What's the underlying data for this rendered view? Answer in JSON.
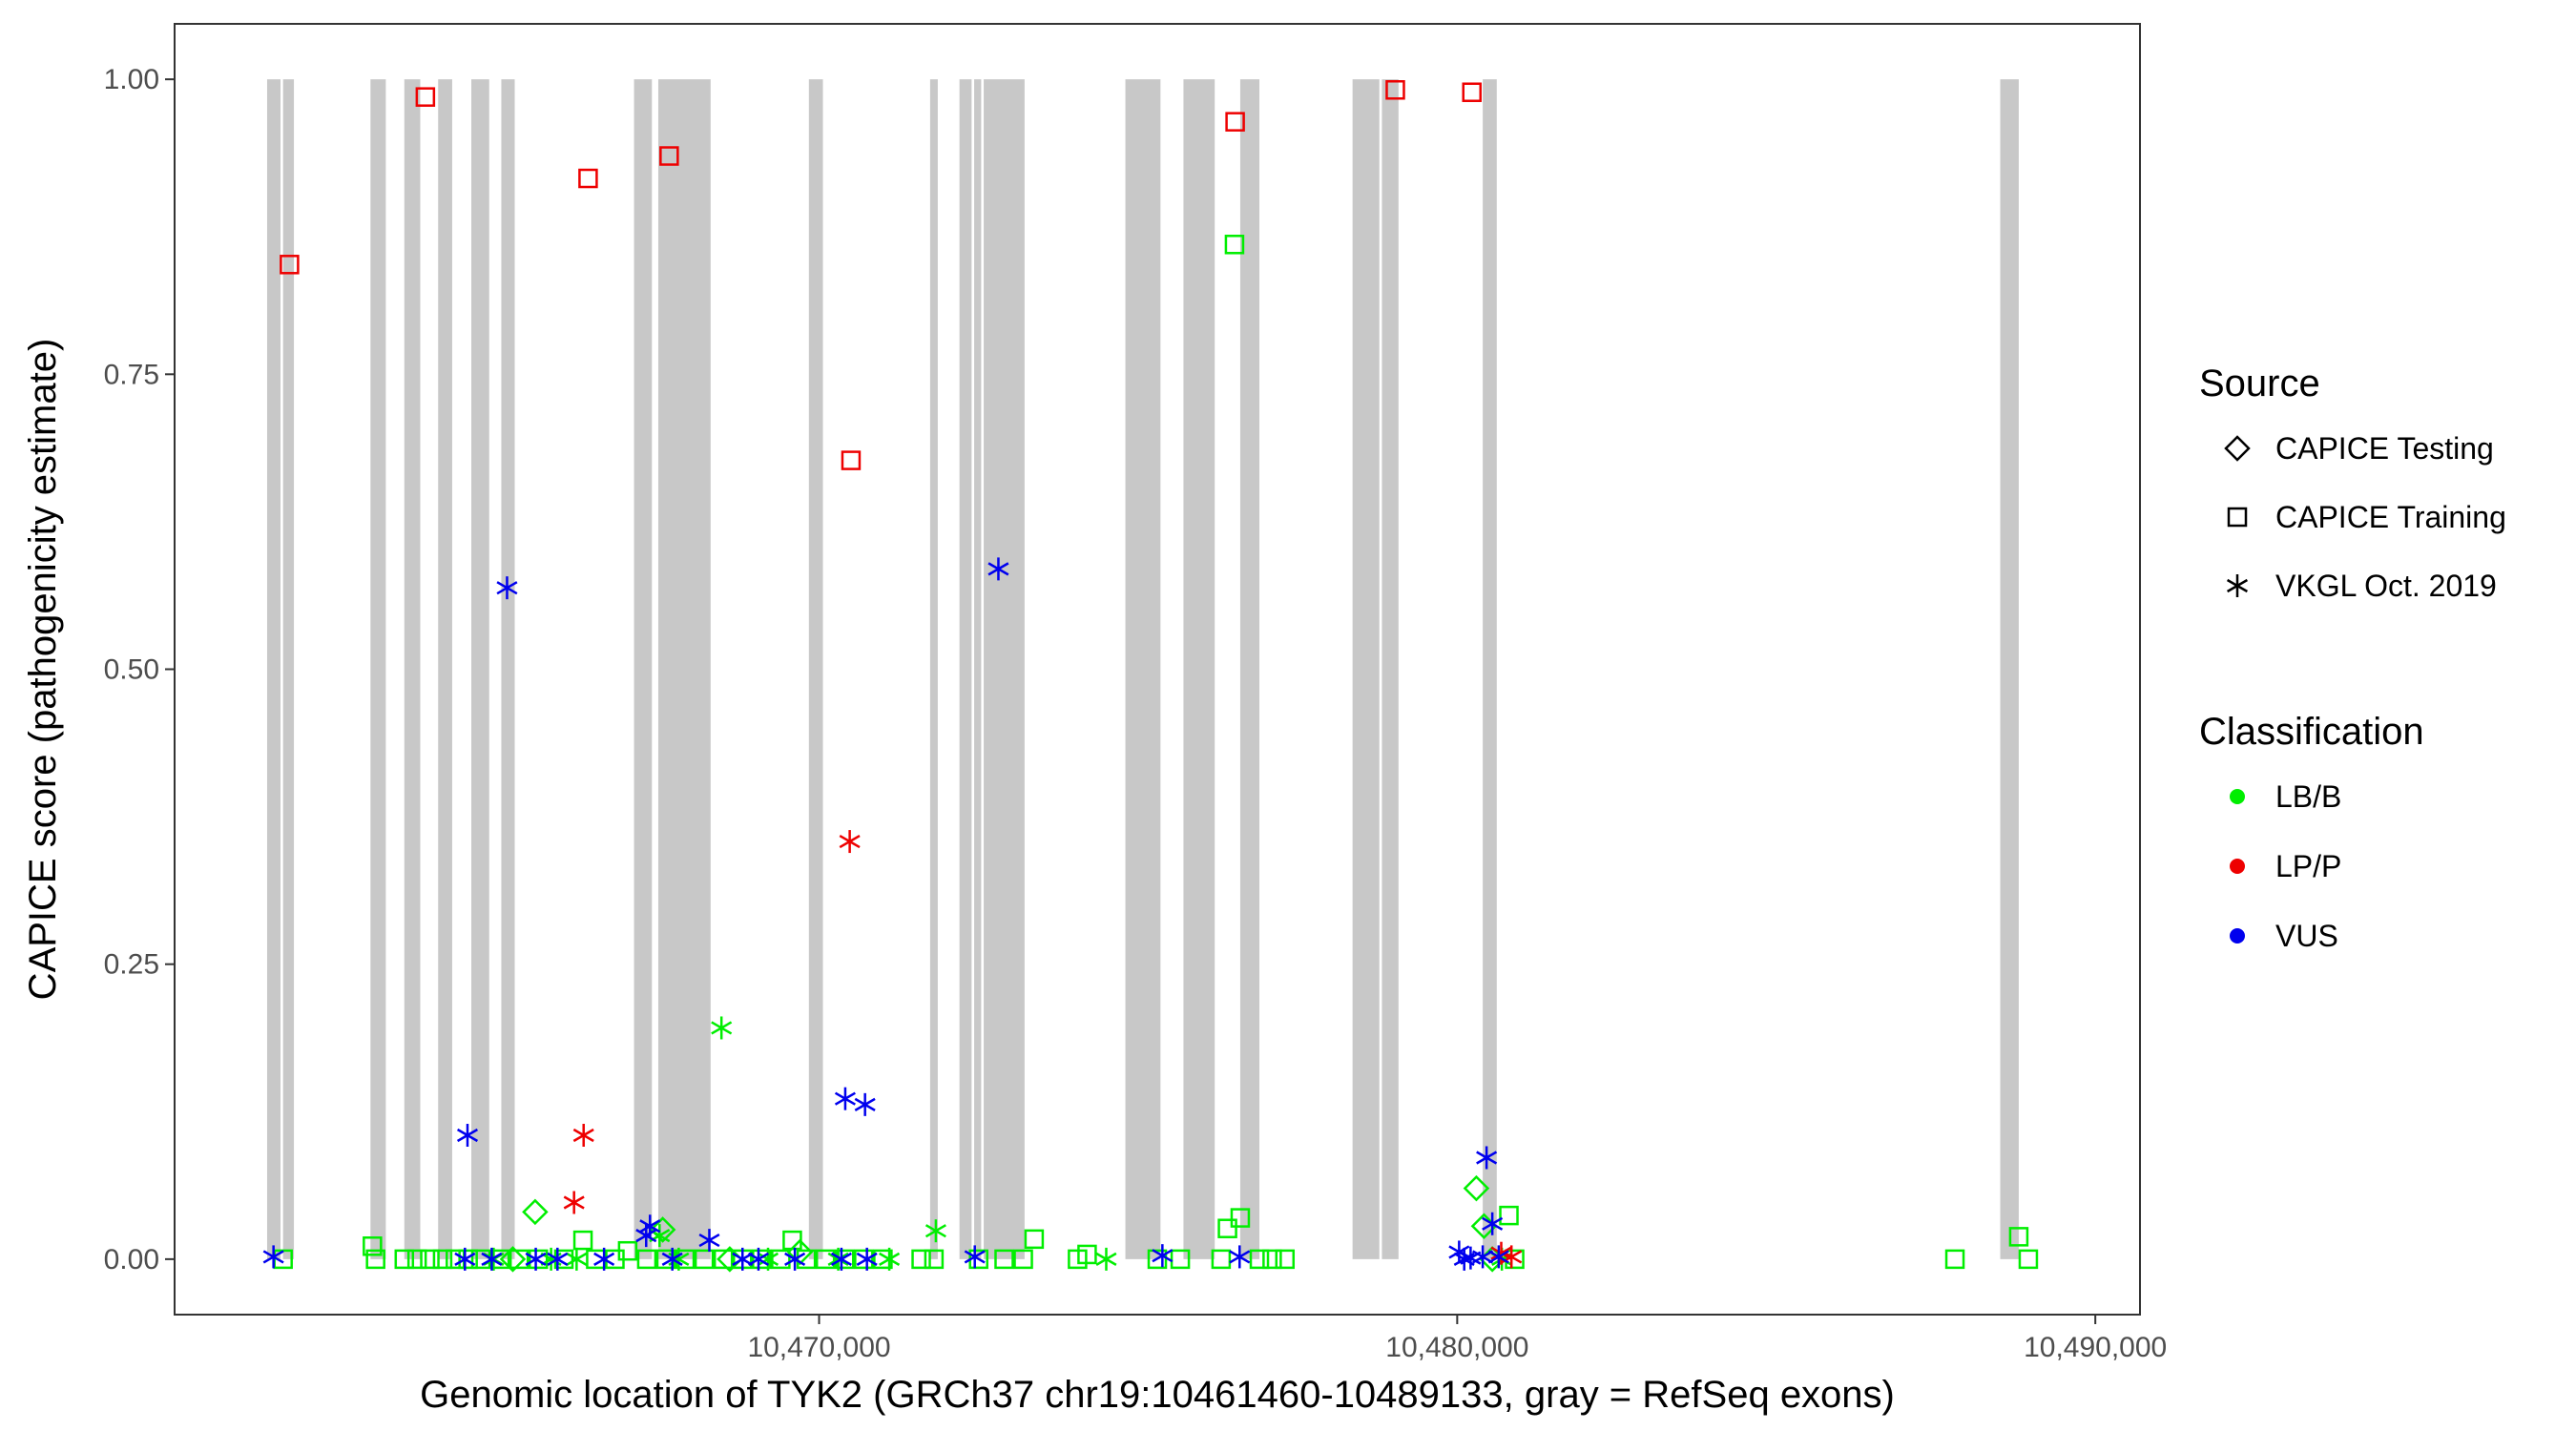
{
  "chart_data": {
    "type": "scatter",
    "title": "",
    "xlabel": "Genomic location of TYK2 (GRCh37 chr19:10461460-10489133, gray = RefSeq exons)",
    "ylabel": "CAPICE score (pathogenicity estimate)",
    "xlim": [
      10459900,
      10490700
    ],
    "ylim": [
      -0.047,
      1.047
    ],
    "x_ticks": [
      {
        "value": 10470000,
        "label": "10,470,000"
      },
      {
        "value": 10480000,
        "label": "10,480,000"
      },
      {
        "value": 10490000,
        "label": "10,490,000"
      }
    ],
    "y_ticks": [
      {
        "value": 0.0,
        "label": "0.00"
      },
      {
        "value": 0.25,
        "label": "0.25"
      },
      {
        "value": 0.5,
        "label": "0.50"
      },
      {
        "value": 0.75,
        "label": "0.75"
      },
      {
        "value": 1.0,
        "label": "1.00"
      }
    ],
    "grid": false,
    "exons_color": "#c8c8c8",
    "exons": [
      [
        10461350,
        10461560
      ],
      [
        10461600,
        10461770
      ],
      [
        10462970,
        10463210
      ],
      [
        10463500,
        10463750
      ],
      [
        10464030,
        10464250
      ],
      [
        10464550,
        10464830
      ],
      [
        10465020,
        10465230
      ],
      [
        10467100,
        10467380
      ],
      [
        10467480,
        10468300
      ],
      [
        10469840,
        10470060
      ],
      [
        10471740,
        10471860
      ],
      [
        10472200,
        10472390
      ],
      [
        10472430,
        10472540
      ],
      [
        10472580,
        10473220
      ],
      [
        10474800,
        10475350
      ],
      [
        10475710,
        10476200
      ],
      [
        10476600,
        10476900
      ],
      [
        10478360,
        10478780
      ],
      [
        10478820,
        10479080
      ],
      [
        10480400,
        10480620
      ],
      [
        10488510,
        10488800
      ]
    ],
    "legend": {
      "placement": "right",
      "source_title": "Source",
      "source_items": [
        {
          "label": "CAPICE Testing",
          "shape": "diamond"
        },
        {
          "label": "CAPICE Training",
          "shape": "square"
        },
        {
          "label": "VKGL Oct. 2019",
          "shape": "asterisk"
        }
      ],
      "class_title": "Classification",
      "class_items": [
        {
          "label": "LB/B",
          "color": "#00ee00"
        },
        {
          "label": "LP/P",
          "color": "#ee0000"
        },
        {
          "label": "VUS",
          "color": "#0000ee"
        }
      ]
    },
    "series": [
      {
        "source": "CAPICE Training",
        "classification": "LP/P",
        "points": [
          [
            10461700,
            0.843
          ],
          [
            10463830,
            0.985
          ],
          [
            10466380,
            0.916
          ],
          [
            10467650,
            0.935
          ],
          [
            10470500,
            0.677
          ],
          [
            10476520,
            0.964
          ],
          [
            10479030,
            0.991
          ],
          [
            10480230,
            0.989
          ]
        ]
      },
      {
        "source": "CAPICE Training",
        "classification": "LB/B",
        "points": [
          [
            10461600,
            0.0
          ],
          [
            10463000,
            0.011
          ],
          [
            10463050,
            0.0
          ],
          [
            10463500,
            0.0
          ],
          [
            10463700,
            0.0
          ],
          [
            10463900,
            0.0
          ],
          [
            10464100,
            0.0
          ],
          [
            10464300,
            0.0
          ],
          [
            10464500,
            0.0
          ],
          [
            10464700,
            0.0
          ],
          [
            10465000,
            0.0
          ],
          [
            10465300,
            0.0
          ],
          [
            10465600,
            0.0
          ],
          [
            10466000,
            0.0
          ],
          [
            10466300,
            0.016
          ],
          [
            10466500,
            0.0
          ],
          [
            10466800,
            0.0
          ],
          [
            10467000,
            0.007
          ],
          [
            10467300,
            0.0
          ],
          [
            10467600,
            0.0
          ],
          [
            10467900,
            0.0
          ],
          [
            10468200,
            0.0
          ],
          [
            10468500,
            0.0
          ],
          [
            10468800,
            0.0
          ],
          [
            10469100,
            0.0
          ],
          [
            10469400,
            0.0
          ],
          [
            10469580,
            0.016
          ],
          [
            10469800,
            0.0
          ],
          [
            10470100,
            0.0
          ],
          [
            10470400,
            0.0
          ],
          [
            10470700,
            0.0
          ],
          [
            10471000,
            0.0
          ],
          [
            10471600,
            0.0
          ],
          [
            10471800,
            0.0
          ],
          [
            10472500,
            0.0
          ],
          [
            10472900,
            0.0
          ],
          [
            10473200,
            0.0
          ],
          [
            10473370,
            0.017
          ],
          [
            10474050,
            0.0
          ],
          [
            10474200,
            0.004
          ],
          [
            10475300,
            0.0
          ],
          [
            10475660,
            0.0
          ],
          [
            10476300,
            0.0
          ],
          [
            10476400,
            0.026
          ],
          [
            10476510,
            0.86
          ],
          [
            10476600,
            0.035
          ],
          [
            10476900,
            0.0
          ],
          [
            10477100,
            0.0
          ],
          [
            10477300,
            0.0
          ],
          [
            10480810,
            0.037
          ],
          [
            10480900,
            0.0
          ],
          [
            10487800,
            0.0
          ],
          [
            10488800,
            0.019
          ],
          [
            10488950,
            0.0
          ]
        ]
      },
      {
        "source": "CAPICE Testing",
        "classification": "LB/B",
        "points": [
          [
            10465550,
            0.04
          ],
          [
            10467550,
            0.025
          ],
          [
            10469700,
            0.006
          ],
          [
            10480300,
            0.06
          ],
          [
            10480420,
            0.028
          ],
          [
            10480550,
            0.0
          ],
          [
            10465200,
            0.0
          ],
          [
            10468600,
            0.0
          ]
        ]
      },
      {
        "source": "VKGL Oct. 2019",
        "classification": "LB/B",
        "points": [
          [
            10468470,
            0.196
          ],
          [
            10471830,
            0.024
          ],
          [
            10467500,
            0.02
          ],
          [
            10467800,
            0.0
          ],
          [
            10465800,
            0.0
          ],
          [
            10464900,
            0.0
          ],
          [
            10466200,
            0.0
          ],
          [
            10470300,
            0.0
          ],
          [
            10474500,
            0.0
          ],
          [
            10480700,
            0.0
          ],
          [
            10469200,
            0.0
          ],
          [
            10471100,
            0.0
          ]
        ]
      },
      {
        "source": "VKGL Oct. 2019",
        "classification": "LP/P",
        "points": [
          [
            10470480,
            0.354
          ],
          [
            10466310,
            0.105
          ],
          [
            10466160,
            0.048
          ],
          [
            10480690,
            0.005
          ],
          [
            10480850,
            0.002
          ]
        ]
      },
      {
        "source": "VKGL Oct. 2019",
        "classification": "VUS",
        "points": [
          [
            10461450,
            0.002
          ],
          [
            10464490,
            0.105
          ],
          [
            10465110,
            0.569
          ],
          [
            10472810,
            0.585
          ],
          [
            10470410,
            0.136
          ],
          [
            10470720,
            0.131
          ],
          [
            10467350,
            0.028
          ],
          [
            10467290,
            0.02
          ],
          [
            10468280,
            0.016
          ],
          [
            10464450,
            0.0
          ],
          [
            10464870,
            0.0
          ],
          [
            10465560,
            0.0
          ],
          [
            10465900,
            0.0
          ],
          [
            10466630,
            0.0
          ],
          [
            10467700,
            0.0
          ],
          [
            10468800,
            0.0
          ],
          [
            10469050,
            0.0
          ],
          [
            10469620,
            0.0
          ],
          [
            10470350,
            0.0
          ],
          [
            10470750,
            0.0
          ],
          [
            10472440,
            0.002
          ],
          [
            10475380,
            0.003
          ],
          [
            10476590,
            0.002
          ],
          [
            10480030,
            0.006
          ],
          [
            10480110,
            0.0
          ],
          [
            10480210,
            0.001
          ],
          [
            10480400,
            0.002
          ],
          [
            10480550,
            0.03
          ],
          [
            10480460,
            0.086
          ],
          [
            10480650,
            0.002
          ]
        ]
      }
    ]
  }
}
